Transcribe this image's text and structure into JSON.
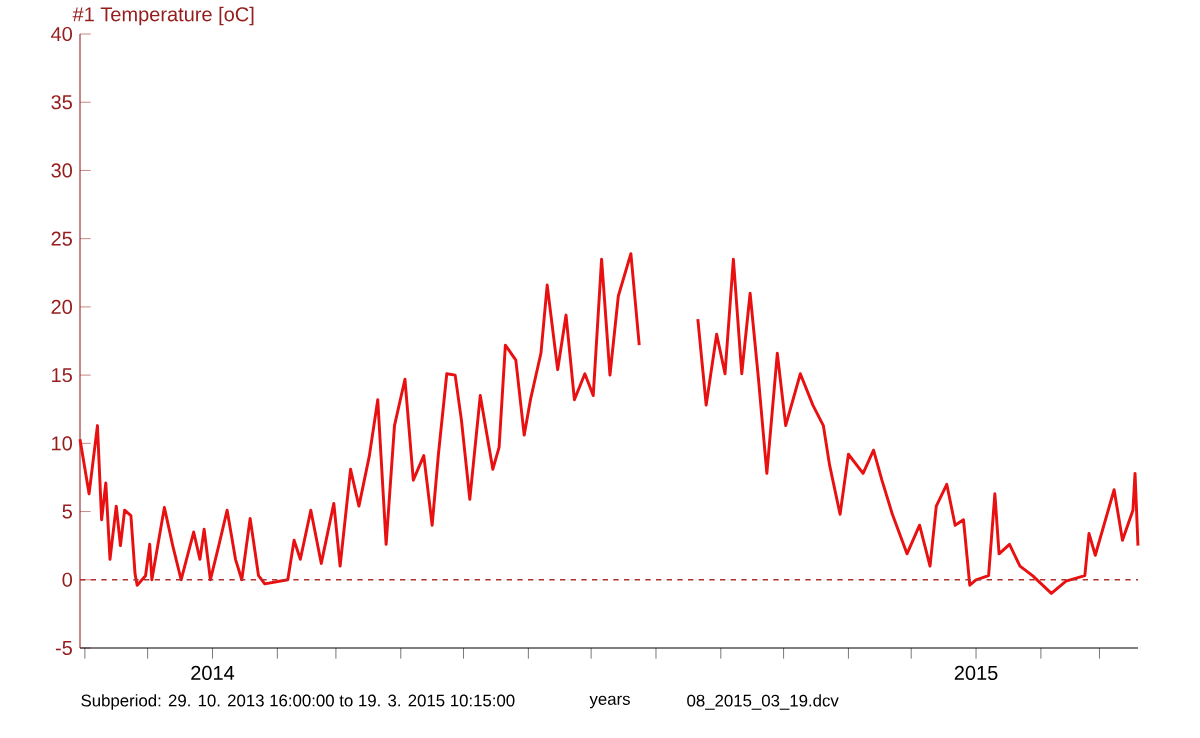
{
  "chart_data": {
    "type": "line",
    "title": "#1  Temperature [oC]",
    "xlabel": "years",
    "annotations": [
      "Subperiod: 29. 10. 2013 16:00:00 to 19. 3. 2015 10:15:00",
      "08_2015_03_19.dcv"
    ],
    "x": [
      "2013-10-29T16:00",
      "2013-11-03",
      "2013-11-07",
      "2013-11-09",
      "2013-11-11",
      "2013-11-13",
      "2013-11-16",
      "2013-11-18",
      "2013-11-20",
      "2013-11-23",
      "2013-11-25",
      "2013-11-26",
      "2013-11-30",
      "2013-12-02",
      "2013-12-03",
      "2013-12-09",
      "2013-12-13",
      "2013-12-17",
      "2013-12-23",
      "2013-12-26",
      "2013-12-28",
      "2013-12-31",
      "2014-01-04",
      "2014-01-08",
      "2014-01-12",
      "2014-01-15",
      "2014-01-19",
      "2014-01-23",
      "2014-01-26",
      "2014-02-06",
      "2014-02-09",
      "2014-02-12",
      "2014-02-17",
      "2014-02-22",
      "2014-02-28",
      "2014-03-03",
      "2014-03-08",
      "2014-03-12",
      "2014-03-17",
      "2014-03-21",
      "2014-03-25",
      "2014-03-29",
      "2014-04-03",
      "2014-04-07",
      "2014-04-12",
      "2014-04-16",
      "2014-04-19",
      "2014-04-23",
      "2014-04-27",
      "2014-04-30",
      "2014-05-04",
      "2014-05-09",
      "2014-05-15",
      "2014-05-18",
      "2014-05-21",
      "2014-05-26",
      "2014-05-30",
      "2014-06-02",
      "2014-06-07",
      "2014-06-10",
      "2014-06-15",
      "2014-06-19",
      "2014-06-23",
      "2014-06-28",
      "2014-07-02",
      "2014-07-06",
      "2014-07-10",
      "2014-07-14",
      "2014-07-20",
      "2014-07-24",
      "2014-08-08",
      "2014-08-21",
      "2014-08-25",
      "2014-08-30",
      "2014-09-03",
      "2014-09-07",
      "2014-09-11",
      "2014-09-15",
      "2014-09-19",
      "2014-09-23",
      "2014-09-28",
      "2014-10-02",
      "2014-10-09",
      "2014-10-15",
      "2014-10-20",
      "2014-10-23",
      "2014-10-28",
      "2014-11-01",
      "2014-11-08",
      "2014-11-13",
      "2014-11-17",
      "2014-11-22",
      "2014-11-29",
      "2014-12-05",
      "2014-12-10",
      "2014-12-13",
      "2014-12-18",
      "2014-12-22",
      "2014-12-26",
      "2014-12-29",
      "2015-01-01",
      "2015-01-07",
      "2015-01-10",
      "2015-01-12",
      "2015-01-17",
      "2015-01-22",
      "2015-01-28",
      "2015-02-06",
      "2015-02-13",
      "2015-02-22",
      "2015-02-24",
      "2015-02-27",
      "2015-03-08",
      "2015-03-12",
      "2015-03-17",
      "2015-03-18",
      "2015-03-19T10:00"
    ],
    "color": "#e81010",
    "values": [
      10.3,
      6.3,
      11.3,
      4.4,
      7.1,
      1.5,
      5.4,
      2.5,
      5.1,
      4.7,
      0.4,
      -0.4,
      0.3,
      2.6,
      0,
      5.3,
      2.5,
      0,
      3.5,
      1.5,
      3.7,
      0,
      2.5,
      5.1,
      1.5,
      0,
      4.5,
      0.3,
      -0.3,
      0,
      2.9,
      1.5,
      5.1,
      1.2,
      5.6,
      1.0,
      8.1,
      5.4,
      9.1,
      13.2,
      2.6,
      11.3,
      14.7,
      7.3,
      9.1,
      4.0,
      9.2,
      15.1,
      15.0,
      11.7,
      5.9,
      13.5,
      8.1,
      9.7,
      17.2,
      16.1,
      10.6,
      13.2,
      16.6,
      21.6,
      15.4,
      19.4,
      13.2,
      15.1,
      13.5,
      23.5,
      15.0,
      20.8,
      23.9,
      17.2,
      null,
      19.1,
      12.8,
      18,
      15.1,
      23.5,
      15.1,
      21,
      14.7,
      7.8,
      16.6,
      11.3,
      15.1,
      12.8,
      11.3,
      8.4,
      4.8,
      9.2,
      7.8,
      9.5,
      7.3,
      4.8,
      1.9,
      4.0,
      1.0,
      5.4,
      7.0,
      4.0,
      4.4,
      -0.4,
      0,
      0.3,
      6.3,
      1.9,
      2.6,
      1.0,
      0.3,
      -1.0,
      -0.1,
      0.3,
      3.4,
      1.8,
      6.6,
      2.9,
      5.1,
      7.8,
      2.5
    ],
    "xlim": [
      "2013-10-29T16:00",
      "2015-03-19T10:15"
    ],
    "ylim": [
      -5,
      40
    ],
    "yticks": [
      -5,
      0,
      5,
      10,
      15,
      20,
      25,
      30,
      35,
      40
    ],
    "xticks": [
      {
        "value": "2013-11-01",
        "label": null
      },
      {
        "value": "2013-12-01",
        "label": null
      },
      {
        "value": "2014-01-01",
        "label": "2014"
      },
      {
        "value": "2014-02-01",
        "label": null
      },
      {
        "value": "2014-03-01",
        "label": null
      },
      {
        "value": "2014-04-01",
        "label": null
      },
      {
        "value": "2014-05-01",
        "label": null
      },
      {
        "value": "2014-06-01",
        "label": null
      },
      {
        "value": "2014-07-01",
        "label": null
      },
      {
        "value": "2014-08-01",
        "label": null
      },
      {
        "value": "2014-09-01",
        "label": null
      },
      {
        "value": "2014-10-01",
        "label": null
      },
      {
        "value": "2014-11-01",
        "label": null
      },
      {
        "value": "2014-12-01",
        "label": null
      },
      {
        "value": "2015-01-01",
        "label": "2015"
      },
      {
        "value": "2015-02-01",
        "label": null
      },
      {
        "value": "2015-03-01",
        "label": null
      }
    ],
    "ref_lines": [
      {
        "axis": "y",
        "value": 0,
        "label": null,
        "color": "#b03030",
        "line_style": "dashed"
      }
    ]
  }
}
